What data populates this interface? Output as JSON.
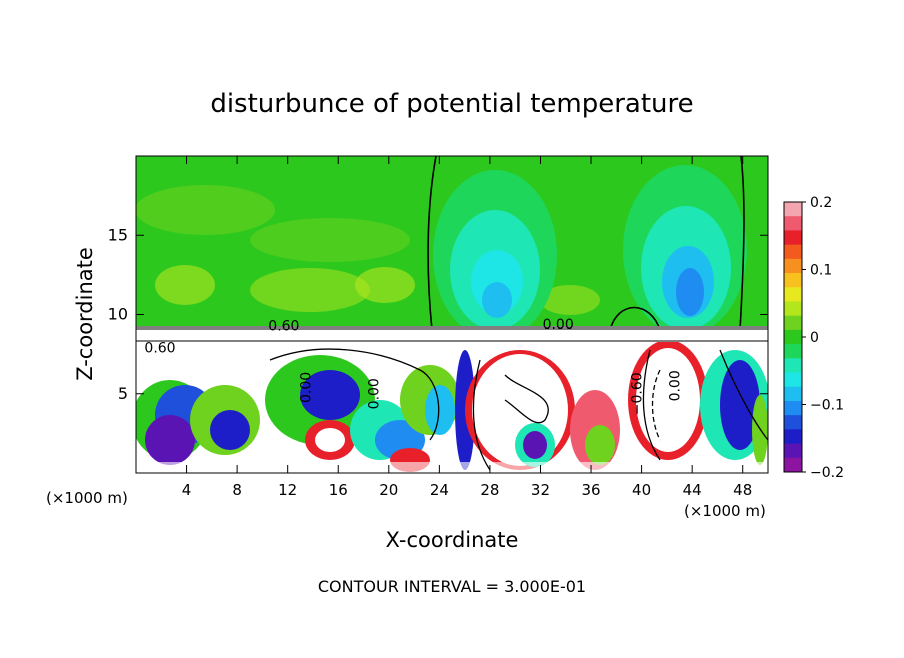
{
  "chart_data": {
    "type": "heatmap",
    "title": "disturbunce of potential temperature",
    "xlabel": "X-coordinate",
    "ylabel": "Z-coordinate",
    "x_unit": "(×1000 m)",
    "x_unit_right": "(×1000 m)",
    "xlim": [
      0,
      50
    ],
    "ylim": [
      0,
      20
    ],
    "x_ticks": [
      4,
      8,
      12,
      16,
      20,
      24,
      28,
      32,
      36,
      40,
      44,
      48
    ],
    "y_ticks": [
      5,
      10,
      15
    ],
    "footer": "CONTOUR INTERVAL = 3.000E-01",
    "colorbar": {
      "min": -0.2,
      "max": 0.2,
      "tick_values": [
        0.2,
        0.1,
        0,
        -0.1,
        -0.2
      ],
      "tick_labels": [
        "0.2",
        "0.1",
        "0",
        "−0.1",
        "−0.2"
      ],
      "colors": [
        "#f4a6b0",
        "#f05a6e",
        "#e8202a",
        "#f25a1e",
        "#f7901e",
        "#f7c21e",
        "#e8e81e",
        "#b4e61e",
        "#6ed21e",
        "#2dc81e",
        "#1ed75a",
        "#1ee6b4",
        "#1ee6e6",
        "#1ebef0",
        "#1e8cf0",
        "#1e50dc",
        "#1e1ec8",
        "#5a14b4",
        "#8c14a0"
      ]
    },
    "contour_labels": [
      {
        "text": "0.60",
        "x": 11.7,
        "z": 9.0
      },
      {
        "text": "0.00",
        "x": 33.4,
        "z": 9.1
      },
      {
        "text": "0.60",
        "x": 1.9,
        "z": 7.6
      },
      {
        "text": "0.00",
        "x": 13.8,
        "z": 5.4
      },
      {
        "text": "0.00",
        "x": 19.2,
        "z": 5.0
      },
      {
        "text": "−0.60",
        "x": 40.0,
        "z": 5.0
      },
      {
        "text": "0.00",
        "x": 43.0,
        "z": 5.5
      }
    ]
  }
}
